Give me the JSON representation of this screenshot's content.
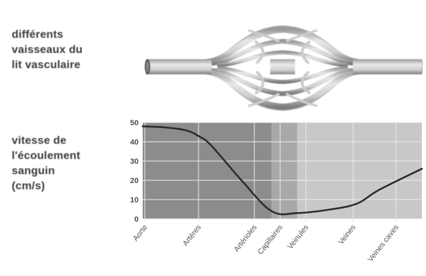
{
  "vessel_label": [
    "différents",
    "vaisseaux du",
    "lit vasculaire"
  ],
  "velocity_label": [
    "vitesse de",
    "l'écoulement",
    "sanguin",
    "(cm/s)"
  ],
  "chart_data": {
    "type": "line",
    "title": "",
    "xlabel": "",
    "ylabel": "vitesse de l'écoulement sanguin (cm/s)",
    "ylim": [
      0,
      50
    ],
    "yticks": [
      0,
      10,
      20,
      30,
      40,
      50
    ],
    "categories": [
      "Aorte",
      "Artères",
      "Artérioles",
      "Capillaires",
      "Veinules",
      "Veines",
      "Veines caves"
    ],
    "x": [
      0,
      0.5,
      1.0,
      1.3,
      1.6,
      2.3,
      3.0,
      3.6,
      4.4,
      5.0,
      5.5,
      6.5
    ],
    "y": [
      48,
      47.5,
      46,
      43,
      38,
      20,
      4,
      3,
      5,
      8,
      15,
      26
    ],
    "grid": true,
    "colors": {
      "band_dark": "#8c8c8c",
      "band_mid": "#a8a8a8",
      "band_light": "#c8c8c8",
      "curve": "#2b2b2b",
      "vessel": "#d4d4d4"
    }
  }
}
